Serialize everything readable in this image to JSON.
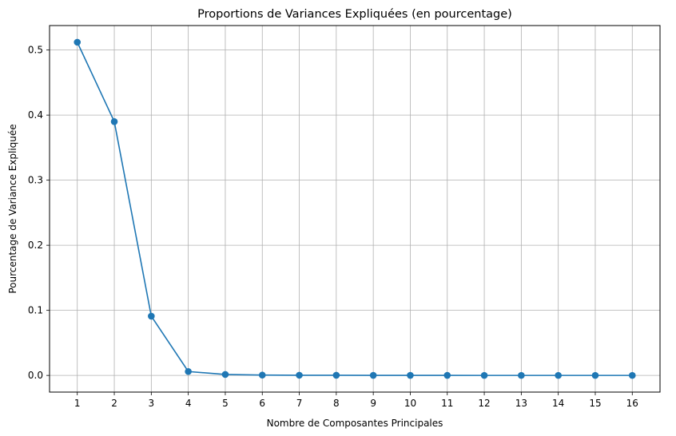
{
  "chart_data": {
    "type": "line",
    "title": "Proportions de Variances Expliquées (en pourcentage)",
    "xlabel": "Nombre de Composantes Principales",
    "ylabel": "Pourcentage de Variance Expliquée",
    "x": [
      1,
      2,
      3,
      4,
      5,
      6,
      7,
      8,
      9,
      10,
      11,
      12,
      13,
      14,
      15,
      16
    ],
    "series": [
      {
        "values": [
          0.512,
          0.39,
          0.091,
          0.006,
          0.0015,
          0.0005,
          0.0003,
          0.0002,
          0.0001,
          0.0001,
          0.0001,
          0.0,
          0.0,
          0.0,
          0.0,
          0.0
        ],
        "color": "#1f77b4",
        "marker": "circle"
      }
    ],
    "xlim": [
      0.25,
      16.75
    ],
    "ylim": [
      -0.0256,
      0.5376
    ],
    "x_ticks": [
      "1",
      "2",
      "3",
      "4",
      "5",
      "6",
      "7",
      "8",
      "9",
      "10",
      "11",
      "12",
      "13",
      "14",
      "15",
      "16"
    ],
    "y_ticks": [
      "0.0",
      "0.1",
      "0.2",
      "0.3",
      "0.4",
      "0.5"
    ],
    "grid": true,
    "grid_color": "#b0b0b0"
  }
}
